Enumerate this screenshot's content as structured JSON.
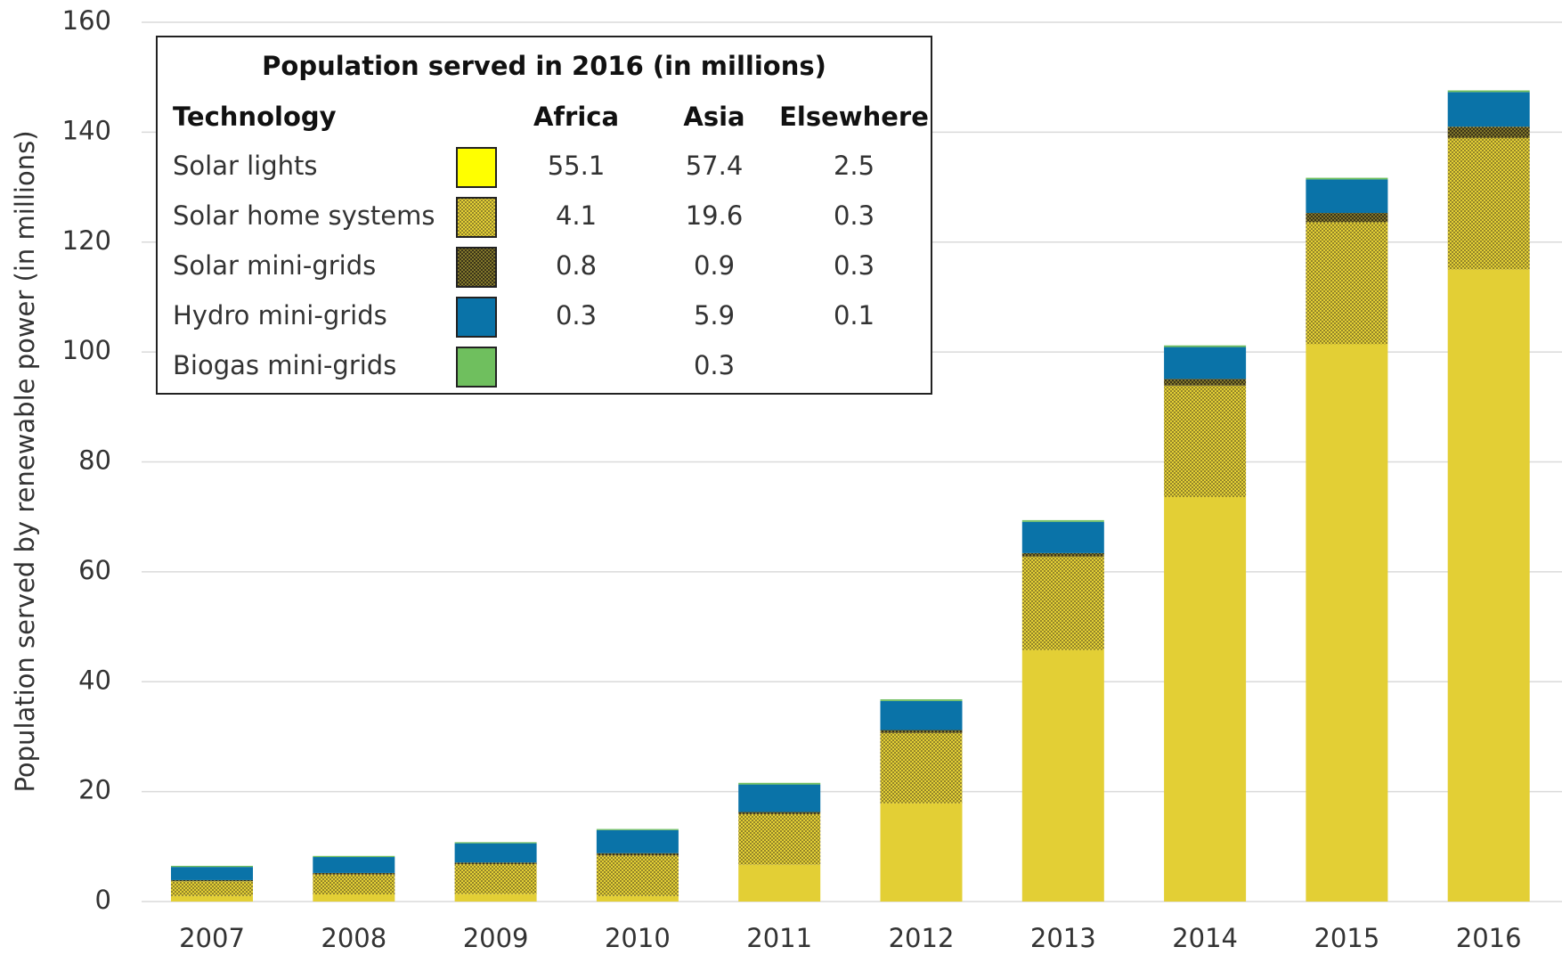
{
  "chart_data": {
    "type": "stacked_bar",
    "y_label": "Population served by renewable power (in millions)",
    "categories": [
      "2007",
      "2008",
      "2009",
      "2010",
      "2011",
      "2012",
      "2013",
      "2014",
      "2015",
      "2016"
    ],
    "series": [
      {
        "name": "Solar lights",
        "color": "#e3cf35",
        "pattern": "solid",
        "values": [
          1.0,
          1.3,
          1.4,
          1.0,
          6.7,
          17.9,
          45.8,
          73.6,
          101.4,
          115.0
        ]
      },
      {
        "name": "Solar home systems",
        "color": "#e3cf35",
        "pattern": "light-dots",
        "values": [
          2.7,
          3.6,
          5.4,
          7.4,
          9.2,
          12.8,
          17.0,
          20.3,
          22.2,
          24.0
        ]
      },
      {
        "name": "Solar mini-grids",
        "color": "#3a3418",
        "pattern": "dark-dots",
        "values": [
          0.2,
          0.3,
          0.3,
          0.4,
          0.4,
          0.5,
          0.6,
          1.2,
          1.7,
          2.0
        ]
      },
      {
        "name": "Hydro mini-grids",
        "color": "#0a73a8",
        "pattern": "solid",
        "values": [
          2.4,
          2.9,
          3.5,
          4.2,
          5.0,
          5.3,
          5.7,
          5.8,
          6.1,
          6.3
        ]
      },
      {
        "name": "Biogas mini-grids",
        "color": "#6fbf5e",
        "pattern": "solid",
        "values": [
          0.2,
          0.2,
          0.2,
          0.2,
          0.3,
          0.3,
          0.3,
          0.3,
          0.3,
          0.3
        ]
      }
    ],
    "ylim": [
      0,
      160
    ],
    "yticks": [
      0,
      20,
      40,
      60,
      80,
      100,
      120,
      140,
      160
    ],
    "grid": true,
    "legend_table": {
      "title": "Population served in 2016 (in millions)",
      "columns": [
        "Technology",
        "Africa",
        "Asia",
        "Elsewhere"
      ],
      "values": [
        [
          55.1,
          57.4,
          2.5
        ],
        [
          4.1,
          19.6,
          0.3
        ],
        [
          0.8,
          0.9,
          0.3
        ],
        [
          0.3,
          5.9,
          0.1
        ],
        [
          null,
          0.3,
          null
        ]
      ]
    }
  }
}
